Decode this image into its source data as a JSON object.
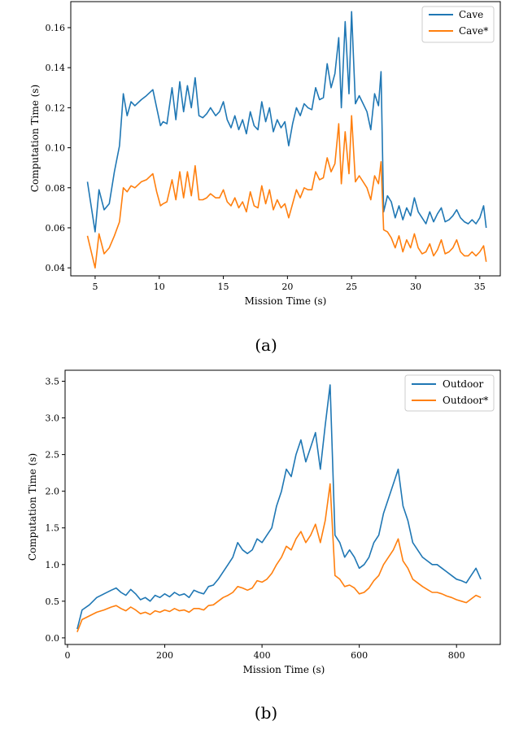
{
  "colors": {
    "series1": "#1f77b4",
    "series2": "#ff7f0e",
    "axis": "#000000"
  },
  "chart_data": [
    {
      "type": "line",
      "caption": "(a)",
      "xlabel": "Mission Time (s)",
      "ylabel": "Computation Time (s)",
      "xlim": [
        3.1,
        36.6
      ],
      "ylim": [
        0.036,
        0.173
      ],
      "xticks": [
        5,
        10,
        15,
        20,
        25,
        30,
        35
      ],
      "yticks": [
        0.04,
        0.06,
        0.08,
        0.1,
        0.12,
        0.14,
        0.16
      ],
      "ytick_labels": [
        "0.04",
        "0.06",
        "0.08",
        "0.10",
        "0.12",
        "0.14",
        "0.16"
      ],
      "legend": "top-right",
      "series": [
        {
          "name": "Cave",
          "x": [
            4.4,
            5.0,
            5.3,
            5.7,
            6.1,
            6.5,
            6.9,
            7.2,
            7.5,
            7.8,
            8.1,
            8.6,
            9.0,
            9.5,
            9.8,
            10.1,
            10.3,
            10.6,
            11.0,
            11.3,
            11.6,
            11.9,
            12.2,
            12.5,
            12.8,
            13.1,
            13.4,
            13.7,
            14.0,
            14.4,
            14.7,
            15.0,
            15.3,
            15.6,
            15.9,
            16.2,
            16.5,
            16.8,
            17.1,
            17.4,
            17.7,
            18.0,
            18.3,
            18.6,
            18.9,
            19.2,
            19.5,
            19.8,
            20.1,
            20.4,
            20.7,
            21.0,
            21.3,
            21.6,
            21.9,
            22.2,
            22.5,
            22.8,
            23.1,
            23.4,
            23.7,
            24.0,
            24.2,
            24.5,
            24.8,
            25.0,
            25.3,
            25.6,
            25.9,
            26.2,
            26.5,
            26.8,
            27.1,
            27.3,
            27.5,
            27.8,
            28.1,
            28.4,
            28.7,
            29.0,
            29.3,
            29.6,
            29.9,
            30.2,
            30.5,
            30.8,
            31.1,
            31.4,
            31.7,
            32.0,
            32.3,
            32.6,
            32.9,
            33.2,
            33.5,
            33.8,
            34.1,
            34.4,
            34.7,
            35.0,
            35.3,
            35.5
          ],
          "values": [
            0.083,
            0.058,
            0.079,
            0.069,
            0.072,
            0.088,
            0.101,
            0.127,
            0.116,
            0.123,
            0.121,
            0.124,
            0.126,
            0.129,
            0.12,
            0.111,
            0.113,
            0.112,
            0.13,
            0.114,
            0.133,
            0.118,
            0.131,
            0.12,
            0.135,
            0.116,
            0.115,
            0.117,
            0.12,
            0.116,
            0.118,
            0.123,
            0.114,
            0.11,
            0.116,
            0.109,
            0.114,
            0.107,
            0.118,
            0.111,
            0.109,
            0.123,
            0.113,
            0.12,
            0.108,
            0.114,
            0.11,
            0.113,
            0.101,
            0.112,
            0.12,
            0.116,
            0.122,
            0.12,
            0.119,
            0.13,
            0.124,
            0.125,
            0.142,
            0.13,
            0.137,
            0.155,
            0.12,
            0.163,
            0.127,
            0.168,
            0.122,
            0.126,
            0.122,
            0.118,
            0.109,
            0.127,
            0.121,
            0.138,
            0.068,
            0.076,
            0.073,
            0.065,
            0.071,
            0.064,
            0.07,
            0.066,
            0.075,
            0.068,
            0.065,
            0.062,
            0.068,
            0.063,
            0.067,
            0.07,
            0.063,
            0.064,
            0.066,
            0.069,
            0.065,
            0.063,
            0.062,
            0.064,
            0.062,
            0.065,
            0.071,
            0.06
          ]
        },
        {
          "name": "Cave*",
          "x": [
            4.4,
            5.0,
            5.3,
            5.7,
            6.1,
            6.5,
            6.9,
            7.2,
            7.5,
            7.8,
            8.1,
            8.6,
            9.0,
            9.5,
            9.8,
            10.1,
            10.3,
            10.6,
            11.0,
            11.3,
            11.6,
            11.9,
            12.2,
            12.5,
            12.8,
            13.1,
            13.4,
            13.7,
            14.0,
            14.4,
            14.7,
            15.0,
            15.3,
            15.6,
            15.9,
            16.2,
            16.5,
            16.8,
            17.1,
            17.4,
            17.7,
            18.0,
            18.3,
            18.6,
            18.9,
            19.2,
            19.5,
            19.8,
            20.1,
            20.4,
            20.7,
            21.0,
            21.3,
            21.6,
            21.9,
            22.2,
            22.5,
            22.8,
            23.1,
            23.4,
            23.7,
            24.0,
            24.2,
            24.5,
            24.8,
            25.0,
            25.3,
            25.6,
            25.9,
            26.2,
            26.5,
            26.8,
            27.1,
            27.3,
            27.5,
            27.8,
            28.1,
            28.4,
            28.7,
            29.0,
            29.3,
            29.6,
            29.9,
            30.2,
            30.5,
            30.8,
            31.1,
            31.4,
            31.7,
            32.0,
            32.3,
            32.6,
            32.9,
            33.2,
            33.5,
            33.8,
            34.1,
            34.4,
            34.7,
            35.0,
            35.3,
            35.5
          ],
          "values": [
            0.056,
            0.04,
            0.057,
            0.047,
            0.05,
            0.056,
            0.063,
            0.08,
            0.078,
            0.081,
            0.08,
            0.083,
            0.084,
            0.087,
            0.078,
            0.071,
            0.072,
            0.073,
            0.084,
            0.074,
            0.088,
            0.075,
            0.088,
            0.076,
            0.091,
            0.074,
            0.074,
            0.075,
            0.077,
            0.075,
            0.075,
            0.079,
            0.073,
            0.071,
            0.075,
            0.07,
            0.073,
            0.068,
            0.078,
            0.071,
            0.07,
            0.081,
            0.072,
            0.079,
            0.069,
            0.074,
            0.07,
            0.072,
            0.065,
            0.072,
            0.079,
            0.075,
            0.08,
            0.079,
            0.079,
            0.088,
            0.084,
            0.085,
            0.095,
            0.088,
            0.092,
            0.112,
            0.082,
            0.108,
            0.087,
            0.116,
            0.083,
            0.086,
            0.083,
            0.08,
            0.074,
            0.086,
            0.082,
            0.093,
            0.059,
            0.058,
            0.055,
            0.05,
            0.056,
            0.048,
            0.054,
            0.05,
            0.057,
            0.05,
            0.047,
            0.048,
            0.052,
            0.046,
            0.049,
            0.054,
            0.047,
            0.048,
            0.05,
            0.054,
            0.048,
            0.046,
            0.046,
            0.048,
            0.046,
            0.048,
            0.051,
            0.043
          ]
        }
      ]
    },
    {
      "type": "line",
      "caption": "(b)",
      "xlabel": "Mission Time (s)",
      "ylabel": "Computation Time (s)",
      "xlim": [
        -5,
        890
      ],
      "ylim": [
        -0.09,
        3.65
      ],
      "xticks": [
        0,
        200,
        400,
        600,
        800
      ],
      "yticks": [
        0.0,
        0.5,
        1.0,
        1.5,
        2.0,
        2.5,
        3.0,
        3.5
      ],
      "ytick_labels": [
        "0.0",
        "0.5",
        "1.0",
        "1.5",
        "2.0",
        "2.5",
        "3.0",
        "3.5"
      ],
      "legend": "top-right",
      "series": [
        {
          "name": "Outdoor",
          "x": [
            20,
            30,
            45,
            60,
            75,
            90,
            100,
            110,
            120,
            130,
            140,
            150,
            160,
            170,
            180,
            190,
            200,
            210,
            220,
            230,
            240,
            250,
            260,
            270,
            280,
            290,
            300,
            310,
            320,
            330,
            340,
            350,
            360,
            370,
            380,
            390,
            400,
            410,
            420,
            430,
            440,
            450,
            460,
            470,
            480,
            490,
            500,
            510,
            520,
            530,
            540,
            550,
            560,
            570,
            580,
            590,
            600,
            610,
            620,
            630,
            640,
            650,
            660,
            670,
            680,
            690,
            700,
            710,
            720,
            730,
            740,
            750,
            760,
            770,
            780,
            790,
            800,
            810,
            820,
            830,
            840,
            850
          ],
          "values": [
            0.12,
            0.38,
            0.45,
            0.55,
            0.6,
            0.65,
            0.68,
            0.62,
            0.58,
            0.66,
            0.6,
            0.52,
            0.55,
            0.5,
            0.58,
            0.55,
            0.6,
            0.56,
            0.62,
            0.58,
            0.6,
            0.55,
            0.65,
            0.62,
            0.6,
            0.7,
            0.72,
            0.8,
            0.9,
            1.0,
            1.1,
            1.3,
            1.2,
            1.15,
            1.2,
            1.35,
            1.3,
            1.4,
            1.5,
            1.8,
            2.0,
            2.3,
            2.2,
            2.5,
            2.7,
            2.4,
            2.6,
            2.8,
            2.3,
            2.9,
            3.45,
            1.4,
            1.3,
            1.1,
            1.2,
            1.1,
            0.95,
            1.0,
            1.1,
            1.3,
            1.4,
            1.7,
            1.9,
            2.1,
            2.3,
            1.8,
            1.6,
            1.3,
            1.2,
            1.1,
            1.05,
            1.0,
            1.0,
            0.95,
            0.9,
            0.85,
            0.8,
            0.78,
            0.75,
            0.85,
            0.95,
            0.8
          ]
        },
        {
          "name": "Outdoor*",
          "x": [
            20,
            30,
            45,
            60,
            75,
            90,
            100,
            110,
            120,
            130,
            140,
            150,
            160,
            170,
            180,
            190,
            200,
            210,
            220,
            230,
            240,
            250,
            260,
            270,
            280,
            290,
            300,
            310,
            320,
            330,
            340,
            350,
            360,
            370,
            380,
            390,
            400,
            410,
            420,
            430,
            440,
            450,
            460,
            470,
            480,
            490,
            500,
            510,
            520,
            530,
            540,
            550,
            560,
            570,
            580,
            590,
            600,
            610,
            620,
            630,
            640,
            650,
            660,
            670,
            680,
            690,
            700,
            710,
            720,
            730,
            740,
            750,
            760,
            770,
            780,
            790,
            800,
            810,
            820,
            830,
            840,
            850
          ],
          "values": [
            0.08,
            0.25,
            0.3,
            0.35,
            0.38,
            0.42,
            0.44,
            0.4,
            0.37,
            0.42,
            0.38,
            0.33,
            0.35,
            0.32,
            0.37,
            0.35,
            0.38,
            0.36,
            0.4,
            0.37,
            0.38,
            0.35,
            0.4,
            0.4,
            0.38,
            0.44,
            0.45,
            0.5,
            0.55,
            0.58,
            0.62,
            0.7,
            0.68,
            0.65,
            0.68,
            0.78,
            0.76,
            0.8,
            0.88,
            1.0,
            1.1,
            1.25,
            1.2,
            1.35,
            1.45,
            1.3,
            1.4,
            1.55,
            1.3,
            1.6,
            2.1,
            0.85,
            0.8,
            0.7,
            0.72,
            0.68,
            0.6,
            0.62,
            0.68,
            0.78,
            0.85,
            1.0,
            1.1,
            1.2,
            1.35,
            1.05,
            0.95,
            0.8,
            0.75,
            0.7,
            0.66,
            0.62,
            0.62,
            0.6,
            0.57,
            0.55,
            0.52,
            0.5,
            0.48,
            0.53,
            0.58,
            0.55
          ]
        }
      ]
    }
  ]
}
